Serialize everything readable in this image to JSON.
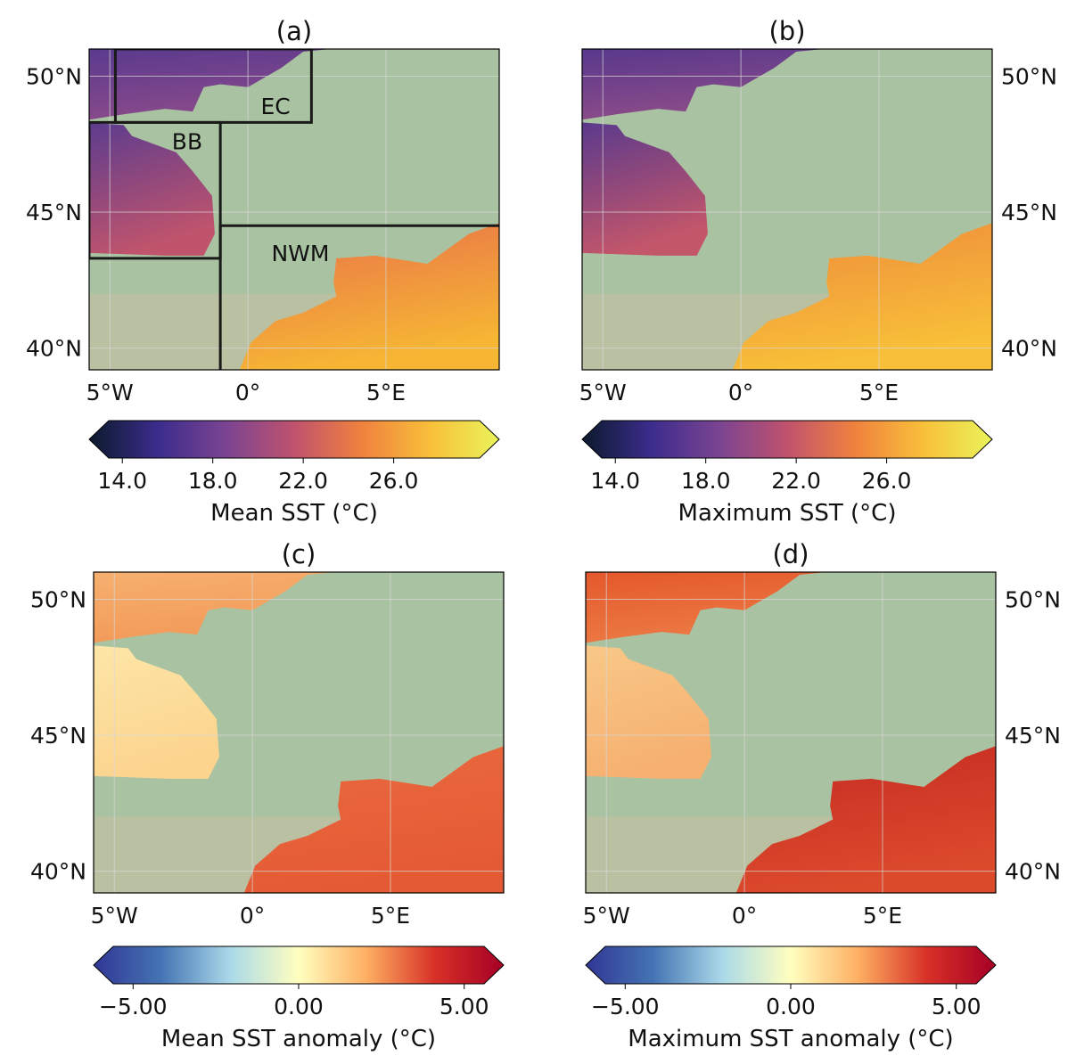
{
  "panels": [
    {
      "title": "(a)",
      "lonlim": [
        -5.75,
        9.1
      ],
      "latlim": [
        39.2,
        51.0
      ],
      "lat_ticks": [
        {
          "value": 50,
          "label": "50°N"
        },
        {
          "value": 45,
          "label": "45°N"
        },
        {
          "value": 40,
          "label": "40°N"
        }
      ],
      "lon_ticks": [
        {
          "value": -5,
          "label": "5°W"
        },
        {
          "value": 0,
          "label": "0°"
        },
        {
          "value": 5,
          "label": "5°E"
        }
      ],
      "regions": [
        "EC",
        "BB",
        "NWM"
      ],
      "colorbar": {
        "label": "Mean SST (°C)",
        "lim": [
          13.4,
          29.8
        ],
        "ticks": [
          {
            "value": 14,
            "label": "14.0"
          },
          {
            "value": 18,
            "label": "18.0"
          },
          {
            "value": 22,
            "label": "22.0"
          },
          {
            "value": 26,
            "label": "26.0"
          }
        ],
        "colors": [
          "#0b1a2c",
          "#3b2c8c",
          "#7a4492",
          "#c0526e",
          "#f0823e",
          "#f8c03a",
          "#eaf35a"
        ]
      }
    },
    {
      "title": "(b)",
      "lonlim": [
        -5.75,
        9.1
      ],
      "latlim": [
        39.2,
        51.0
      ],
      "lat_ticks": [
        {
          "value": 50,
          "label": "50°N"
        },
        {
          "value": 45,
          "label": "45°N"
        },
        {
          "value": 40,
          "label": "40°N"
        }
      ],
      "lon_ticks": [
        {
          "value": -5,
          "label": "5°W"
        },
        {
          "value": 0,
          "label": "0°"
        },
        {
          "value": 5,
          "label": "5°E"
        }
      ],
      "colorbar": {
        "label": "Maximum SST (°C)",
        "lim": [
          13.4,
          29.8
        ],
        "ticks": [
          {
            "value": 14,
            "label": "14.0"
          },
          {
            "value": 18,
            "label": "18.0"
          },
          {
            "value": 22,
            "label": "22.0"
          },
          {
            "value": 26,
            "label": "26.0"
          }
        ],
        "colors": [
          "#0b1a2c",
          "#3b2c8c",
          "#7a4492",
          "#c0526e",
          "#f0823e",
          "#f8c03a",
          "#eaf35a"
        ]
      }
    },
    {
      "title": "(c)",
      "lonlim": [
        -5.75,
        9.1
      ],
      "latlim": [
        39.2,
        51.0
      ],
      "lat_ticks": [
        {
          "value": 50,
          "label": "50°N"
        },
        {
          "value": 45,
          "label": "45°N"
        },
        {
          "value": 40,
          "label": "40°N"
        }
      ],
      "lon_ticks": [
        {
          "value": -5,
          "label": "5°W"
        },
        {
          "value": 0,
          "label": "0°"
        },
        {
          "value": 5,
          "label": "5°E"
        }
      ],
      "colorbar": {
        "label": "Mean SST anomaly (°C)",
        "lim": [
          -5.6,
          5.6
        ],
        "ticks": [
          {
            "value": -5,
            "label": "−5.00"
          },
          {
            "value": 0,
            "label": "0.00"
          },
          {
            "value": 5,
            "label": "5.00"
          }
        ],
        "colors": [
          "#313695",
          "#4575b4",
          "#abd9e9",
          "#ffffbf",
          "#fdae61",
          "#d73027",
          "#a50026"
        ]
      }
    },
    {
      "title": "(d)",
      "lonlim": [
        -5.75,
        9.1
      ],
      "latlim": [
        39.2,
        51.0
      ],
      "lat_ticks": [
        {
          "value": 50,
          "label": "50°N"
        },
        {
          "value": 45,
          "label": "45°N"
        },
        {
          "value": 40,
          "label": "40°N"
        }
      ],
      "lon_ticks": [
        {
          "value": -5,
          "label": "5°W"
        },
        {
          "value": 0,
          "label": "0°"
        },
        {
          "value": 5,
          "label": "5°E"
        }
      ],
      "colorbar": {
        "label": "Maximum SST anomaly (°C)",
        "lim": [
          -5.6,
          5.6
        ],
        "ticks": [
          {
            "value": -5,
            "label": "−5.00"
          },
          {
            "value": 0,
            "label": "0.00"
          },
          {
            "value": 5,
            "label": "5.00"
          }
        ],
        "colors": [
          "#313695",
          "#4575b4",
          "#abd9e9",
          "#ffffbf",
          "#fdae61",
          "#d73027",
          "#a50026"
        ]
      }
    }
  ]
}
